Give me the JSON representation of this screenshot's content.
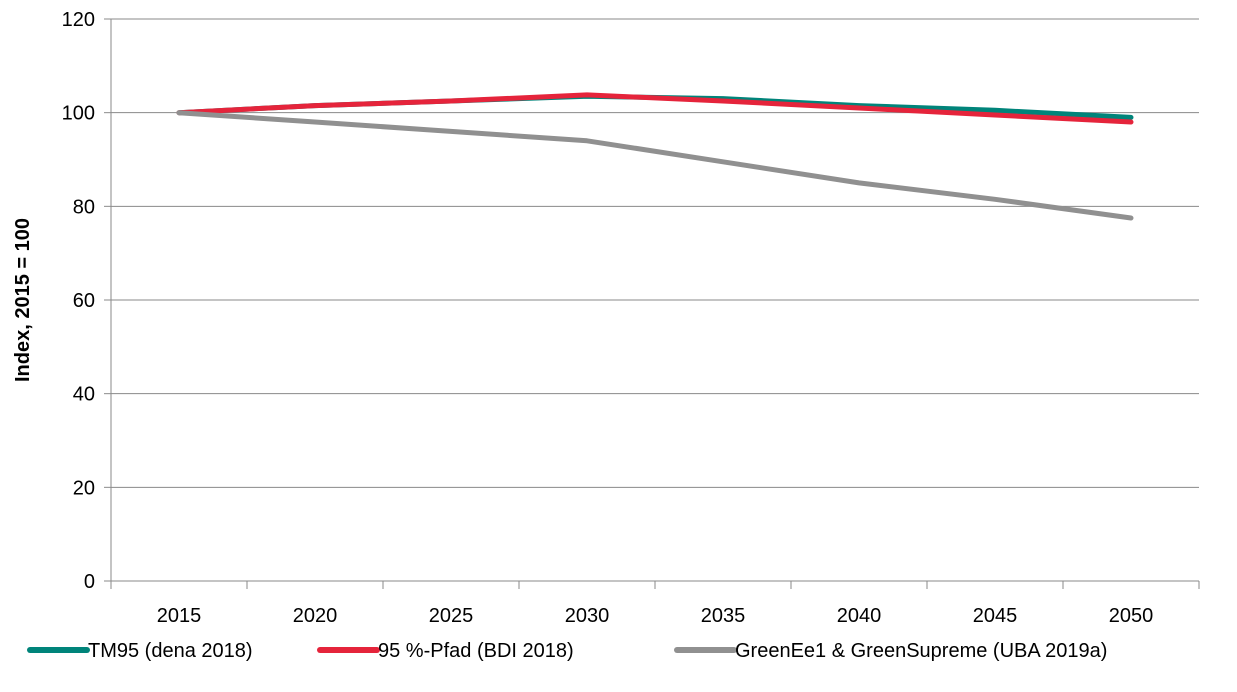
{
  "chart_data": {
    "type": "line",
    "title": "",
    "xlabel": "",
    "ylabel": "Index, 2015 = 100",
    "categories": [
      "2015",
      "2020",
      "2025",
      "2030",
      "2035",
      "2040",
      "2045",
      "2050"
    ],
    "ylim": [
      0,
      120
    ],
    "yticks": [
      "0",
      "20",
      "40",
      "60",
      "80",
      "100",
      "120"
    ],
    "grid": true,
    "legend_position": "bottom",
    "series": [
      {
        "name": "TM95 (dena 2018)",
        "color": "#00847a",
        "values": [
          100,
          101.5,
          102.5,
          103.5,
          103,
          101.5,
          100.5,
          99
        ]
      },
      {
        "name": "95 %-Pfad (BDI 2018)",
        "color": "#e5243b",
        "values": [
          100,
          101.5,
          102.5,
          103.8,
          102.5,
          101,
          99.5,
          98
        ]
      },
      {
        "name": "GreenEe1 & GreenSupreme (UBA 2019a)",
        "color": "#909090",
        "values": [
          100,
          98,
          96,
          94,
          89.5,
          85,
          81.5,
          77.5
        ]
      }
    ]
  }
}
